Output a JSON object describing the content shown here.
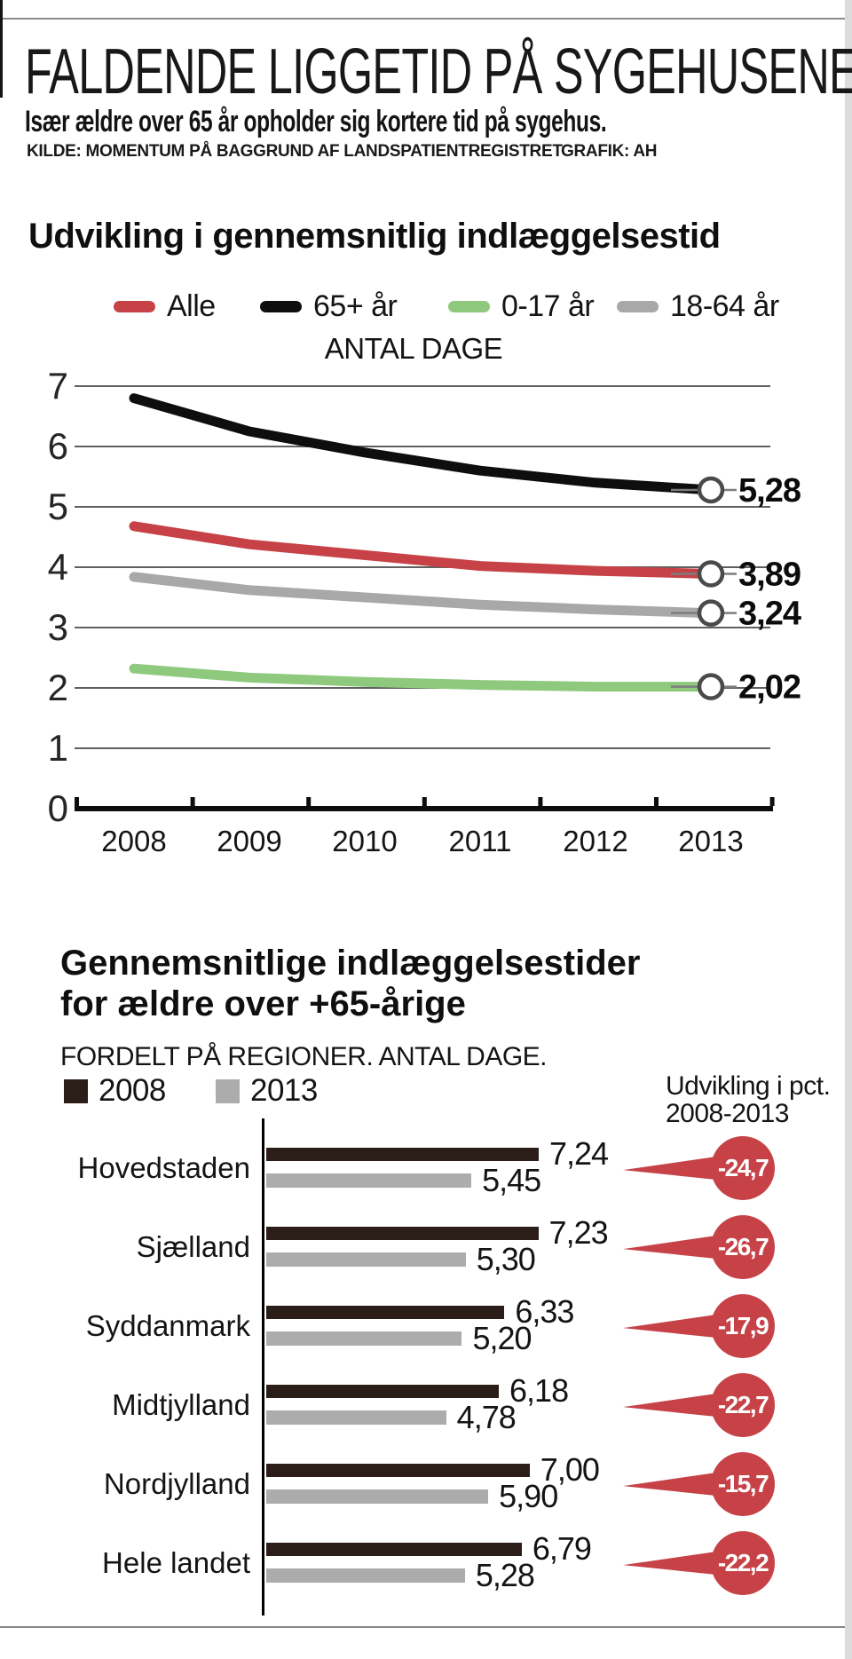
{
  "page": {
    "title": "FALDENDE LIGGETID PÅ SYGEHUSENE",
    "subtitle": "Især ældre over 65 år opholder sig kortere tid på sygehus.",
    "source": "KILDE: MOMENTUM PÅ BAGGRUND AF LANDSPATIENTREGISTRET",
    "credit": "GRAFIK: AH"
  },
  "colors": {
    "red": "#c64247",
    "black_line": "#0e0e0e",
    "green": "#8fc97e",
    "gray_line": "#a8a8a8",
    "bar_2008": "#2b1d18",
    "bar_2013": "#acacac",
    "bubble_red": "#c64247",
    "gridline": "#606060",
    "axis_black": "#0d0d0d",
    "marker_ring": "#4a4a4a",
    "rule_gray": "#8a8a8a"
  },
  "chart1": {
    "heading": "Udvikling i gennemsnitlig indlæggelsestid",
    "unit_label": "ANTAL DAGE",
    "legend": [
      {
        "label": "Alle",
        "color": "#c64247"
      },
      {
        "label": "65+ år",
        "color": "#0e0e0e"
      },
      {
        "label": "0-17 år",
        "color": "#8fc97e"
      },
      {
        "label": "18-64 år",
        "color": "#a8a8a8"
      }
    ],
    "ytick_labels": [
      "0",
      "1",
      "2",
      "3",
      "4",
      "5",
      "6",
      "7"
    ]
  },
  "chart2": {
    "heading_line1": "Gennemsnitlige indlæggelsestider",
    "heading_line2": "for ældre over +65-årige",
    "subtitle": "FORDELT PÅ REGIONER. ANTAL DAGE.",
    "legend": [
      {
        "label": "2008",
        "color": "#2b1d18"
      },
      {
        "label": "2013",
        "color": "#acacac"
      }
    ],
    "pct_header_line1": "Udvikling i pct.",
    "pct_header_line2": "2008-2013"
  },
  "chart_data": [
    {
      "type": "line",
      "title": "Udvikling i gennemsnitlig indlæggelsestid",
      "ylabel": "ANTAL DAGE",
      "x": [
        2008,
        2009,
        2010,
        2011,
        2012,
        2013
      ],
      "ylim": [
        0,
        7
      ],
      "grid": true,
      "legend_position": "top",
      "series": [
        {
          "name": "Alle",
          "color": "#c64247",
          "values": [
            4.68,
            4.38,
            4.2,
            4.02,
            3.94,
            3.89
          ],
          "end_label": "3,89"
        },
        {
          "name": "65+ år",
          "color": "#0e0e0e",
          "values": [
            6.8,
            6.25,
            5.9,
            5.6,
            5.4,
            5.28
          ],
          "end_label": "5,28"
        },
        {
          "name": "0-17 år",
          "color": "#8fc97e",
          "values": [
            2.32,
            2.17,
            2.1,
            2.05,
            2.02,
            2.02
          ],
          "end_label": "2,02"
        },
        {
          "name": "18-64 år",
          "color": "#a8a8a8",
          "values": [
            3.84,
            3.62,
            3.5,
            3.38,
            3.3,
            3.24
          ],
          "end_label": "3,24"
        }
      ]
    },
    {
      "type": "bar",
      "title": "Gennemsnitlige indlæggelsestider for ældre over +65-årige",
      "subtitle": "FORDELT PÅ REGIONER. ANTAL DAGE.",
      "orientation": "horizontal",
      "categories": [
        "Hovedstaden",
        "Sjælland",
        "Syddanmark",
        "Midtjylland",
        "Nordjylland",
        "Hele landet"
      ],
      "series": [
        {
          "name": "2008",
          "color": "#2b1d18",
          "values": [
            7.24,
            7.23,
            6.33,
            6.18,
            7.0,
            6.79
          ]
        },
        {
          "name": "2013",
          "color": "#acacac",
          "values": [
            5.45,
            5.3,
            5.2,
            4.78,
            5.9,
            5.28
          ]
        }
      ],
      "labels_2008": [
        "7,24",
        "7,23",
        "6,33",
        "6,18",
        "7,00",
        "6,79"
      ],
      "labels_2013": [
        "5,45",
        "5,30",
        "5,20",
        "4,78",
        "5,90",
        "5,28"
      ],
      "pct_change": [
        "-24,7",
        "-26,7",
        "-17,9",
        "-22,7",
        "-15,7",
        "-22,2"
      ]
    }
  ]
}
